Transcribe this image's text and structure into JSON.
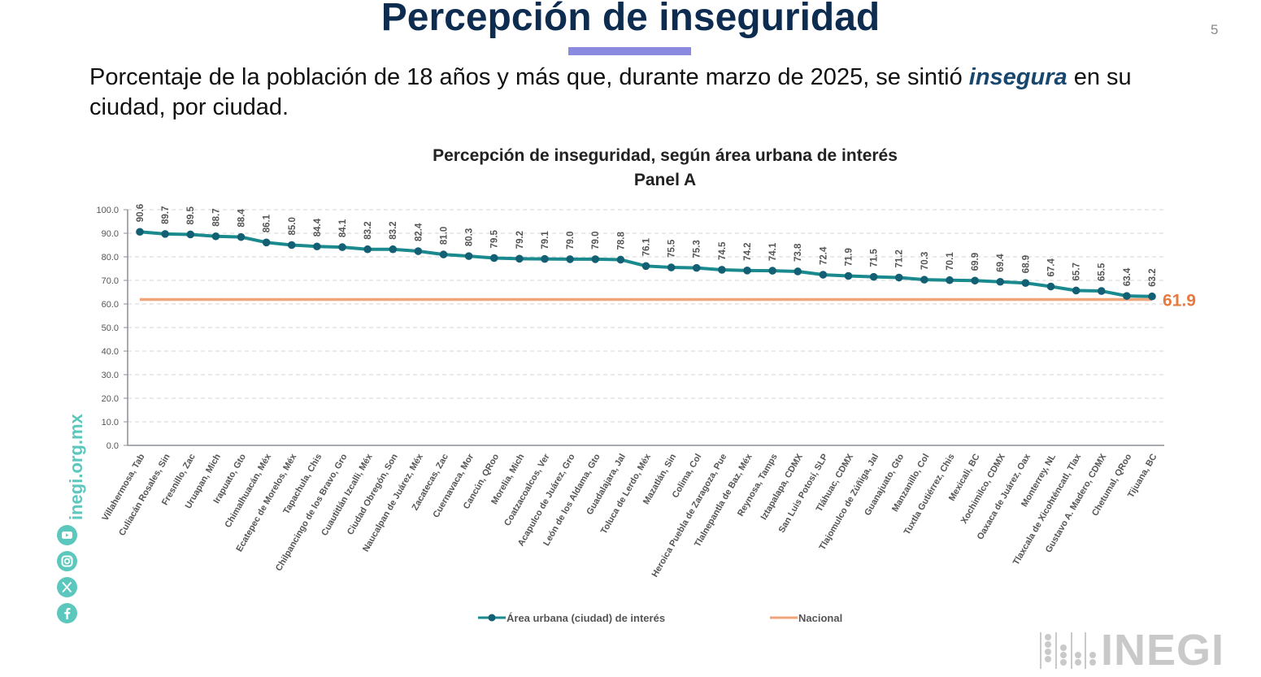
{
  "header": {
    "title": "Percepción de inseguridad",
    "page_number": "5",
    "accent_color": "#8a8be0",
    "subtitle_part1": "Porcentaje de la población de 18 años y más que, durante marzo de 2025, se sintió ",
    "subtitle_emphasis": "insegura",
    "subtitle_part2": " en su ciudad, por ciudad."
  },
  "sidebar": {
    "site": "inegi.org.mx",
    "social_icons": [
      "youtube-icon",
      "instagram-icon",
      "x-icon",
      "facebook-icon"
    ],
    "color": "#5cc7bd"
  },
  "footer": {
    "logo_text": "INEGI"
  },
  "chart_data": {
    "type": "line",
    "title": "Percepción de inseguridad, según área urbana de interés",
    "subtitle": "Panel A",
    "xlabel": "",
    "ylabel": "",
    "ylim": [
      0,
      100
    ],
    "yticks": [
      0,
      10,
      20,
      30,
      40,
      50,
      60,
      70,
      80,
      90,
      100
    ],
    "ytick_labels": [
      "0.0",
      "10.0",
      "20.0",
      "30.0",
      "40.0",
      "50.0",
      "60.0",
      "70.0",
      "80.0",
      "90.0",
      "100.0"
    ],
    "grid": true,
    "legend_position": "bottom",
    "categories": [
      "Villahermosa, Tab",
      "Culiacán Rosales, Sin",
      "Fresnillo, Zac",
      "Uruapan, Mich",
      "Irapuato, Gto",
      "Chimalhuacán, Méx",
      "Ecatepec de Morelos, Méx",
      "Tapachula, Chis",
      "Chilpancingo de los Bravo, Gro",
      "Cuautitlán Izcalli, Méx",
      "Ciudad Obregón, Son",
      "Naucalpan de Juárez, Méx",
      "Zacatecas, Zac",
      "Cuernavaca, Mor",
      "Cancún, QRoo",
      "Morelia, Mich",
      "Coatzacoalcos, Ver",
      "Acapulco de Juárez, Gro",
      "León de los Aldama, Gto",
      "Guadalajara, Jal",
      "Toluca de Lerdo, Méx",
      "Mazatlán, Sin",
      "Colima, Col",
      "Heroica Puebla de Zaragoza, Pue",
      "Tlalnepantla de Baz, Méx",
      "Reynosa, Tamps",
      "Iztapalapa, CDMX",
      "San Luis Potosí, SLP",
      "Tláhuac, CDMX",
      "Tlajomulco de Zúñiga, Jal",
      "Guanajuato, Gto",
      "Manzanillo, Col",
      "Tuxtla Gutiérrez, Chis",
      "Mexicali, BC",
      "Xochimilco, CDMX",
      "Oaxaca de Juárez, Oax",
      "Monterrey, NL",
      "Tlaxcala de Xicohténcatl, Tlax",
      "Gustavo A. Madero, CDMX",
      "Chetumal, QRoo",
      "Tijuana, BC"
    ],
    "series": [
      {
        "name": "Área urbana (ciudad) de interés",
        "color": "#1a8a8e",
        "marker_color": "#135f73",
        "values": [
          90.6,
          89.7,
          89.5,
          88.7,
          88.4,
          86.1,
          85.0,
          84.4,
          84.1,
          83.2,
          83.2,
          82.4,
          81.0,
          80.3,
          79.5,
          79.2,
          79.1,
          79.0,
          79.0,
          78.8,
          76.1,
          75.5,
          75.3,
          74.5,
          74.2,
          74.1,
          73.8,
          72.4,
          71.9,
          71.5,
          71.2,
          70.3,
          70.1,
          69.9,
          69.4,
          68.9,
          67.4,
          65.7,
          65.5,
          63.4,
          63.2
        ]
      },
      {
        "name": "Nacional",
        "color": "#f0a47a",
        "label_color": "#e8793f",
        "value": 61.9,
        "value_label": "61.9"
      }
    ]
  }
}
